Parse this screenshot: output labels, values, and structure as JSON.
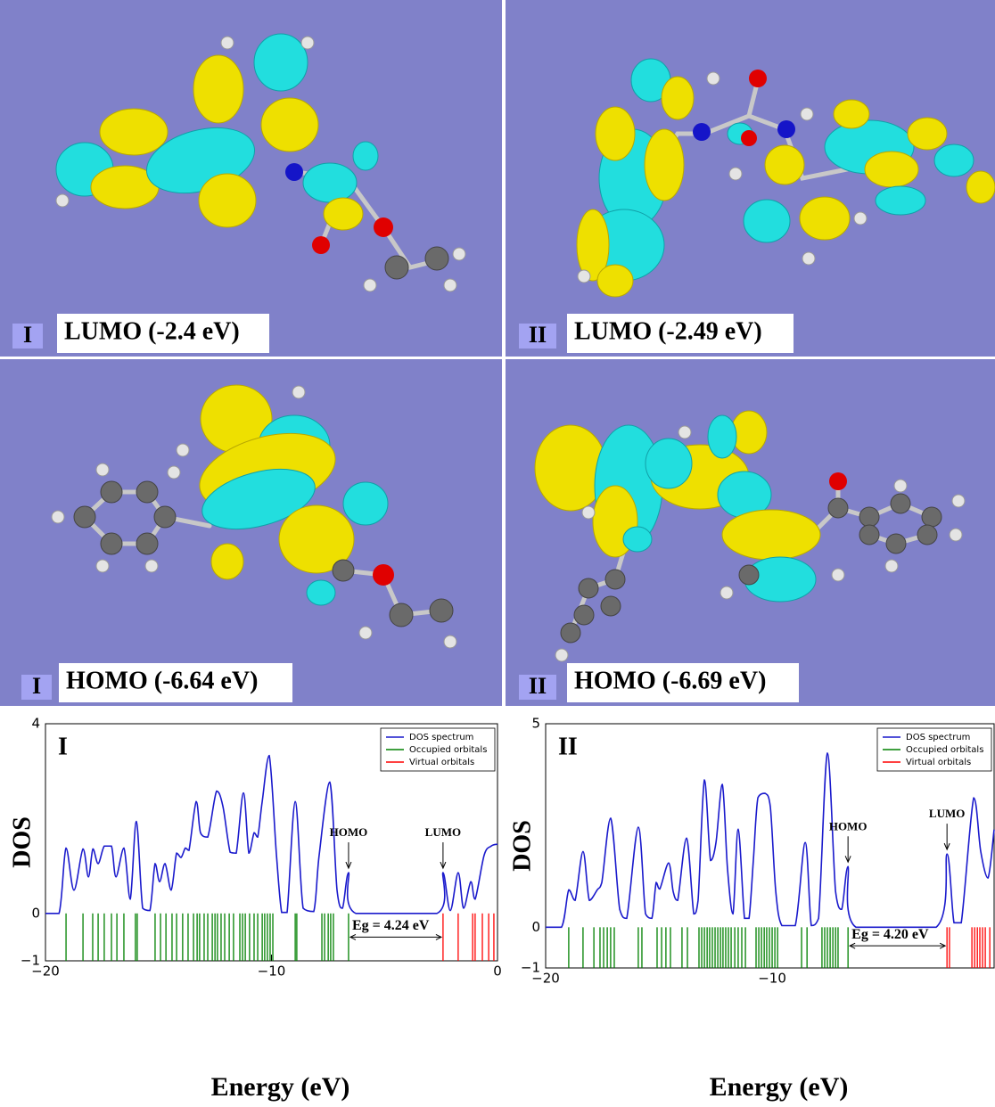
{
  "panels": [
    {
      "label": "I",
      "title": "LUMO (-2.4 eV)"
    },
    {
      "label": "II",
      "title": "LUMO (-2.49 eV)"
    },
    {
      "label": "I",
      "title": "HOMO (-6.64 eV)"
    },
    {
      "label": "II",
      "title": "HOMO (-6.69 eV)"
    }
  ],
  "chart_data": [
    {
      "type": "line",
      "label": "I",
      "xlabel": "Energy (eV)",
      "ylabel": "DOS",
      "xlim": [
        -20,
        0
      ],
      "ylim": [
        -1,
        4
      ],
      "xticks": [
        {
          "value": -20,
          "label": "−20"
        },
        {
          "value": -10,
          "label": "−10"
        },
        0
      ],
      "yticks": [
        {
          "value": -1,
          "label": "−1"
        },
        0,
        4
      ],
      "legend": "upper right",
      "series": [
        {
          "name": "DOS spectrum",
          "color": "#1a1acc",
          "x": [
            -20,
            -19.4,
            -19.09,
            -18.74,
            -18.34,
            -18.1,
            -17.9,
            -17.67,
            -17.4,
            -17.08,
            -16.88,
            -16.53,
            -16.25,
            -15.98,
            -15.7,
            -15.38,
            -15.15,
            -14.95,
            -14.71,
            -14.44,
            -14.2,
            -14.0,
            -13.81,
            -13.65,
            -13.33,
            -13.14,
            -12.82,
            -12.43,
            -12.15,
            -11.83,
            -11.56,
            -11.24,
            -11.0,
            -10.77,
            -10.61,
            -10.41,
            -10.1,
            -9.78,
            -9.55,
            -9.31,
            -8.95,
            -8.6,
            -8.13,
            -7.89,
            -7.42,
            -7.1,
            -6.86,
            -6.59,
            -6.27,
            -2.68,
            -2.41,
            -2.09,
            -1.74,
            -1.5,
            -1.18,
            -0.99,
            -0.59,
            -0.28,
            0
          ],
          "values": [
            0,
            0,
            1.38,
            0.49,
            1.36,
            0.77,
            1.36,
            1.05,
            1.42,
            1.42,
            0.77,
            1.38,
            0.3,
            1.94,
            0.11,
            0.06,
            1.05,
            0.67,
            1.05,
            0.49,
            1.27,
            1.18,
            1.38,
            1.33,
            2.36,
            1.7,
            1.61,
            2.58,
            2.26,
            1.29,
            1.27,
            2.54,
            1.27,
            1.7,
            1.61,
            2.36,
            3.33,
            1.23,
            0.02,
            0.02,
            2.36,
            0.11,
            0.04,
            1.23,
            2.77,
            0.49,
            0.11,
            0.86,
            0,
            0,
            0.86,
            0.06,
            0.86,
            0.11,
            0.67,
            0.3,
            1.23,
            1.42,
            1.46
          ]
        },
        {
          "name": "Occupied orbitals",
          "color": "#008000",
          "type": "stem",
          "x": [
            -19.09,
            -18.34,
            -17.91,
            -17.67,
            -17.4,
            -17.08,
            -16.84,
            -16.53,
            -16.02,
            -15.94,
            -15.15,
            -14.91,
            -14.67,
            -14.4,
            -14.2,
            -13.93,
            -13.69,
            -13.45,
            -13.29,
            -13.18,
            -12.98,
            -12.82,
            -12.62,
            -12.5,
            -12.39,
            -12.23,
            -12.07,
            -11.87,
            -11.68,
            -11.4,
            -11.28,
            -11.16,
            -10.97,
            -10.77,
            -10.61,
            -10.41,
            -10.3,
            -10.18,
            -10.06,
            -9.94,
            -8.95,
            -8.88,
            -7.77,
            -7.65,
            -7.49,
            -7.38,
            -7.26,
            -6.59
          ]
        },
        {
          "name": "Virtual orbitals",
          "color": "#ff0000",
          "type": "stem",
          "x": [
            -2.41,
            -1.74,
            -1.1,
            -0.99,
            -0.67,
            -0.39,
            -0.16
          ]
        }
      ],
      "annotations": [
        {
          "text": "HOMO",
          "x": -6.59
        },
        {
          "text": "LUMO",
          "x": -2.41
        }
      ],
      "gap_label": "Eg = 4.24 eV"
    },
    {
      "type": "line",
      "label": "II",
      "xlabel": "Energy (eV)",
      "ylabel": "DOS",
      "xlim": [
        -20,
        -0.2
      ],
      "ylim": [
        -1,
        5
      ],
      "xticks": [
        {
          "value": -20,
          "label": "−20"
        },
        {
          "value": -10,
          "label": "−10"
        }
      ],
      "yticks": [
        {
          "value": -1,
          "label": "−1"
        },
        0,
        5
      ],
      "legend": "upper right",
      "series": [
        {
          "name": "DOS spectrum",
          "color": "#1a1acc",
          "x": [
            -20,
            -19.3,
            -18.98,
            -18.7,
            -18.35,
            -18.07,
            -17.72,
            -17.52,
            -17.13,
            -16.73,
            -16.42,
            -15.91,
            -15.59,
            -15.31,
            -15.12,
            -14.96,
            -14.57,
            -14.37,
            -14.17,
            -13.78,
            -13.46,
            -13.27,
            -12.99,
            -12.72,
            -12.48,
            -12.2,
            -11.97,
            -11.73,
            -11.5,
            -11.22,
            -11.02,
            -10.83,
            -10.63,
            -10.31,
            -10.08,
            -9.84,
            -9.57,
            -8.98,
            -8.54,
            -8.27,
            -7.95,
            -7.56,
            -7.2,
            -6.93,
            -6.65,
            -6.3,
            -2.76,
            -2.28,
            -1.97,
            -1.65,
            -1.1,
            -0.79,
            -0.47,
            -0.2
          ],
          "values": [
            0,
            0,
            0.92,
            0.66,
            1.86,
            0.66,
            0.92,
            1.1,
            2.68,
            0.44,
            0.22,
            2.46,
            0.33,
            0.22,
            1.1,
            0.94,
            1.58,
            0.88,
            0.66,
            2.19,
            0.33,
            0.66,
            3.62,
            1.64,
            2.08,
            3.51,
            1.43,
            0.33,
            2.41,
            0.22,
            0.22,
            1.64,
            3.18,
            3.29,
            2.96,
            0.88,
            0.04,
            0.04,
            2.08,
            0.04,
            0.22,
            4.28,
            0.88,
            0.44,
            1.49,
            0,
            0,
            1.8,
            0.11,
            0.11,
            3.18,
            1.86,
            1.21,
            2.4
          ]
        },
        {
          "name": "Occupied orbitals",
          "color": "#008000",
          "type": "stem",
          "x": [
            -18.98,
            -18.35,
            -17.87,
            -17.6,
            -17.44,
            -17.28,
            -17.13,
            -16.97,
            -15.91,
            -15.75,
            -15.08,
            -14.88,
            -14.69,
            -14.49,
            -13.98,
            -13.74,
            -13.23,
            -13.11,
            -12.99,
            -12.87,
            -12.76,
            -12.64,
            -12.52,
            -12.4,
            -12.28,
            -12.17,
            -12.05,
            -11.93,
            -11.81,
            -11.65,
            -11.5,
            -11.34,
            -11.18,
            -10.71,
            -10.59,
            -10.47,
            -10.35,
            -10.24,
            -10.12,
            -10.0,
            -9.88,
            -9.76,
            -8.7,
            -8.46,
            -7.8,
            -7.68,
            -7.56,
            -7.44,
            -7.32,
            -7.2,
            -7.09,
            -6.65
          ]
        },
        {
          "name": "Virtual orbitals",
          "color": "#ff0000",
          "type": "stem",
          "x": [
            -2.28,
            -2.17,
            -1.18,
            -1.06,
            -0.94,
            -0.83,
            -0.71,
            -0.59,
            -0.39
          ]
        }
      ],
      "annotations": [
        {
          "text": "HOMO",
          "x": -6.65
        },
        {
          "text": "LUMO",
          "x": -2.28
        }
      ],
      "gap_label": "Eg = 4.20 eV"
    }
  ]
}
